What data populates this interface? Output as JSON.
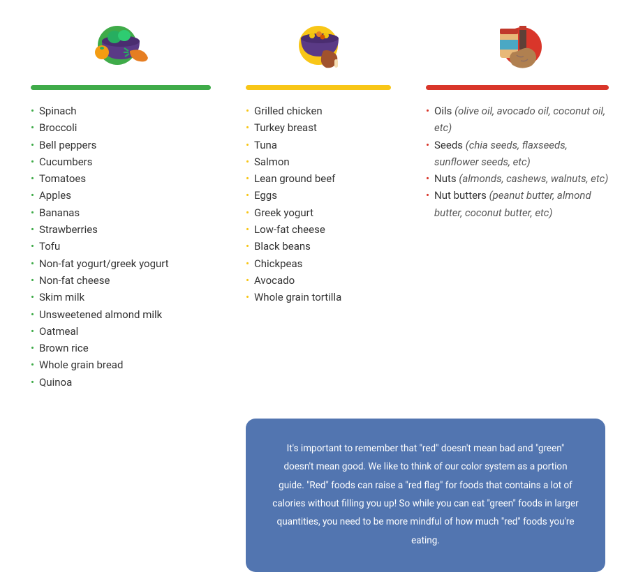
{
  "colors": {
    "green": "#3fab49",
    "yellow": "#f8c617",
    "red": "#d9362a",
    "callout_bg": "#5275b0",
    "text": "#333333",
    "note": "#555555",
    "callout_text": "#ffffff",
    "background": "#ffffff",
    "icon_bowl": "#5a3a86",
    "icon_peanut": "#b08050",
    "icon_jar_lid": "#c0392b",
    "icon_jar_body": "#e8b878",
    "icon_jar_label": "#4aa8c4",
    "icon_orange": "#f39c12",
    "icon_carrot": "#e67e22",
    "icon_leaf": "#27ae60"
  },
  "columns": [
    {
      "key": "green",
      "accent": "#3fab49",
      "icon": "veggie-bowl-icon",
      "items": [
        {
          "main": "Spinach"
        },
        {
          "main": "Broccoli"
        },
        {
          "main": "Bell peppers"
        },
        {
          "main": "Cucumbers"
        },
        {
          "main": "Tomatoes"
        },
        {
          "main": "Apples"
        },
        {
          "main": "Bananas"
        },
        {
          "main": "Strawberries"
        },
        {
          "main": "Tofu"
        },
        {
          "main": "Non-fat yogurt/greek yogurt"
        },
        {
          "main": "Non-fat cheese"
        },
        {
          "main": "Skim milk"
        },
        {
          "main": "Unsweetened almond milk"
        },
        {
          "main": "Oatmeal"
        },
        {
          "main": "Brown rice"
        },
        {
          "main": "Whole grain bread"
        },
        {
          "main": "Quinoa"
        }
      ]
    },
    {
      "key": "yellow",
      "accent": "#f8c617",
      "icon": "protein-bowl-icon",
      "items": [
        {
          "main": "Grilled chicken"
        },
        {
          "main": "Turkey breast"
        },
        {
          "main": "Tuna"
        },
        {
          "main": "Salmon"
        },
        {
          "main": "Lean ground beef"
        },
        {
          "main": "Eggs"
        },
        {
          "main": "Greek yogurt"
        },
        {
          "main": "Low-fat cheese"
        },
        {
          "main": "Black beans"
        },
        {
          "main": "Chickpeas"
        },
        {
          "main": "Avocado"
        },
        {
          "main": "Whole grain tortilla"
        }
      ]
    },
    {
      "key": "red",
      "accent": "#d9362a",
      "icon": "fats-jar-icon",
      "items": [
        {
          "main": "Oils ",
          "note": "(olive oil, avocado oil, coconut oil, etc)"
        },
        {
          "main": "Seeds ",
          "note": "(chia seeds, flaxseeds, sunflower seeds, etc)"
        },
        {
          "main": "Nuts ",
          "note": "(almonds, cashews, walnuts, etc)"
        },
        {
          "main": "Nut butters ",
          "note": "(peanut butter, almond butter, coconut butter, etc)"
        }
      ]
    }
  ],
  "callout": {
    "text": "It's important to remember that \"red\" doesn't mean bad and \"green\" doesn't mean good. We like to think of our color system as a portion guide. \"Red\" foods can raise a \"red flag\" for foods that contains a lot of calories without filling you up! So while you can eat \"green\" foods in larger quantities, you need to be more mindful of how much \"red\" foods you're eating."
  }
}
